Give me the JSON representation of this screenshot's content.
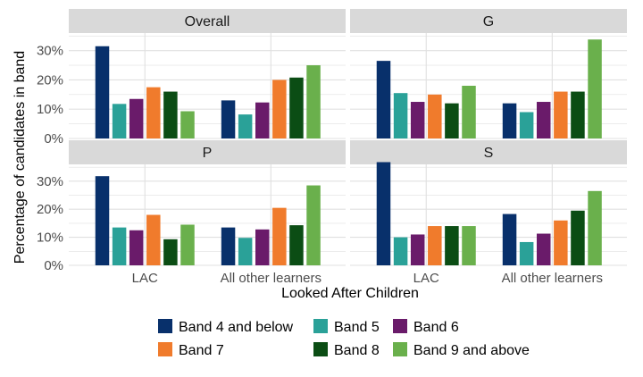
{
  "chart_data": {
    "type": "bar",
    "xlabel": "Looked After Children",
    "ylabel": "Percentage of candidates in band",
    "ylim": [
      0,
      0.36
    ],
    "yticks": [
      0,
      0.1,
      0.2,
      0.3
    ],
    "ytick_labels": [
      "0%",
      "10%",
      "20%",
      "30%"
    ],
    "categories": [
      "LAC",
      "All other learners"
    ],
    "grid": true,
    "legend_position": "bottom",
    "colors": {
      "Band 4 and below": "#08306b",
      "Band 5": "#2aa198",
      "Band 6": "#6a1b6a",
      "Band 7": "#f07b2c",
      "Band 8": "#0b4d14",
      "Band 9 and above": "#6ab04c",
      "strip_bg": "#d9d9d9",
      "panel_bg": "#ffffff",
      "grid": "#e0e0e0"
    },
    "legend": [
      "Band 4 and below",
      "Band 5",
      "Band 6",
      "Band 7",
      "Band 8",
      "Band 9 and above"
    ],
    "panels": [
      {
        "title": "Overall",
        "series": [
          {
            "name": "Band 4 and below",
            "values": [
              0.315,
              0.13
            ]
          },
          {
            "name": "Band 5",
            "values": [
              0.118,
              0.082
            ]
          },
          {
            "name": "Band 6",
            "values": [
              0.135,
              0.123
            ]
          },
          {
            "name": "Band 7",
            "values": [
              0.175,
              0.2
            ]
          },
          {
            "name": "Band 8",
            "values": [
              0.16,
              0.208
            ]
          },
          {
            "name": "Band 9 and above",
            "values": [
              0.093,
              0.25
            ]
          }
        ]
      },
      {
        "title": "G",
        "series": [
          {
            "name": "Band 4 and below",
            "values": [
              0.265,
              0.12
            ]
          },
          {
            "name": "Band 5",
            "values": [
              0.155,
              0.09
            ]
          },
          {
            "name": "Band 6",
            "values": [
              0.125,
              0.125
            ]
          },
          {
            "name": "Band 7",
            "values": [
              0.15,
              0.16
            ]
          },
          {
            "name": "Band 8",
            "values": [
              0.12,
              0.16
            ]
          },
          {
            "name": "Band 9 and above",
            "values": [
              0.18,
              0.338
            ]
          }
        ]
      },
      {
        "title": "P",
        "series": [
          {
            "name": "Band 4 and below",
            "values": [
              0.318,
              0.135
            ]
          },
          {
            "name": "Band 5",
            "values": [
              0.135,
              0.098
            ]
          },
          {
            "name": "Band 6",
            "values": [
              0.125,
              0.128
            ]
          },
          {
            "name": "Band 7",
            "values": [
              0.18,
              0.205
            ]
          },
          {
            "name": "Band 8",
            "values": [
              0.093,
              0.143
            ]
          },
          {
            "name": "Band 9 and above",
            "values": [
              0.145,
              0.285
            ]
          }
        ]
      },
      {
        "title": "S",
        "series": [
          {
            "name": "Band 4 and below",
            "values": [
              0.368,
              0.183
            ]
          },
          {
            "name": "Band 5",
            "values": [
              0.1,
              0.083
            ]
          },
          {
            "name": "Band 6",
            "values": [
              0.11,
              0.113
            ]
          },
          {
            "name": "Band 7",
            "values": [
              0.14,
              0.16
            ]
          },
          {
            "name": "Band 8",
            "values": [
              0.14,
              0.195
            ]
          },
          {
            "name": "Band 9 and above",
            "values": [
              0.14,
              0.265
            ]
          }
        ]
      }
    ]
  }
}
